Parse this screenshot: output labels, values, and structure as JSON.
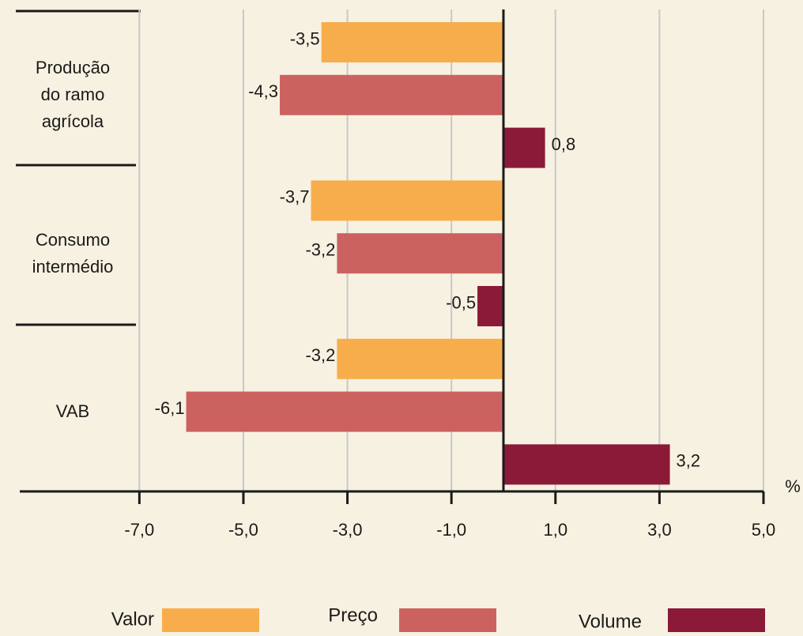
{
  "chart_data": {
    "type": "barh",
    "categories": [
      "Produção\ndo ramo\nagrícola",
      "Consumo\nintermédio",
      "VAB"
    ],
    "series": [
      {
        "name": "Valor",
        "color": "#f8ad4c",
        "values": [
          -3.5,
          -3.7,
          -3.2
        ],
        "value_labels": [
          "-3,5",
          "-3,7",
          "-3,2"
        ]
      },
      {
        "name": "Preço",
        "color": "#cc6260",
        "values": [
          -4.3,
          -3.2,
          -6.1
        ],
        "value_labels": [
          "-4,3",
          "-3,2",
          "-6,1"
        ]
      },
      {
        "name": "Volume",
        "color": "#8b1a38",
        "values": [
          0.8,
          -0.5,
          3.2
        ],
        "value_labels": [
          "0,8",
          "-0,5",
          "3,2"
        ]
      }
    ],
    "x_label": "%",
    "xlim": [
      -9.3,
      5
    ],
    "xticks": [
      {
        "value": -7,
        "label": "-7,0"
      },
      {
        "value": -5,
        "label": "-5,0"
      },
      {
        "value": -3,
        "label": "-3,0"
      },
      {
        "value": -1,
        "label": "-1,0"
      },
      {
        "value": 1,
        "label": "1,0"
      },
      {
        "value": 3,
        "label": "3,0"
      },
      {
        "value": 5,
        "label": "5,0"
      }
    ],
    "grid": true,
    "legend": "bottom"
  }
}
